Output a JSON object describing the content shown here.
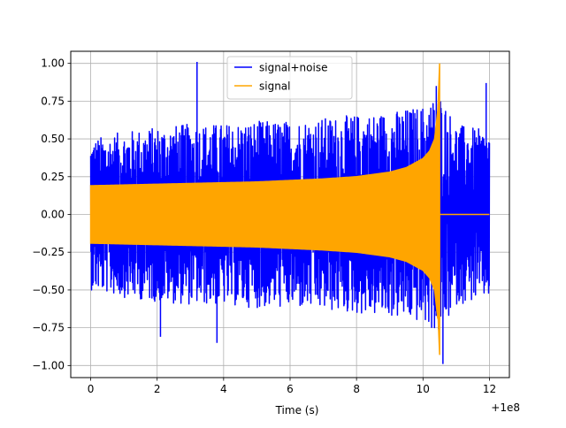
{
  "chart_data": {
    "type": "line",
    "title": "",
    "xlabel": "Time (s)",
    "ylabel": "",
    "x_offset_label": "+1e8",
    "xlim": [
      -0.6,
      12.6
    ],
    "ylim": [
      -1.08,
      1.08
    ],
    "x_ticks": [
      0,
      2,
      4,
      6,
      8,
      10,
      12
    ],
    "x_tick_labels": [
      "0",
      "2",
      "4",
      "6",
      "8",
      "10",
      "12"
    ],
    "y_ticks": [
      -1.0,
      -0.75,
      -0.5,
      -0.25,
      0.0,
      0.25,
      0.5,
      0.75,
      1.0
    ],
    "y_tick_labels": [
      "−1.00",
      "−0.75",
      "−0.50",
      "−0.25",
      "0.00",
      "0.25",
      "0.50",
      "0.75",
      "1.00"
    ],
    "grid": true,
    "legend_position": "top-center",
    "series": [
      {
        "name": "signal+noise",
        "color": "#0000ff",
        "x_range": [
          0,
          12
        ],
        "description_envelope": {
          "x": [
            0,
            1,
            2,
            3,
            4,
            5,
            6,
            7,
            8,
            9,
            10,
            10.5,
            11,
            12
          ],
          "upper": [
            0.5,
            0.55,
            0.58,
            0.6,
            0.6,
            0.62,
            0.62,
            0.64,
            0.66,
            0.68,
            0.72,
            0.8,
            0.6,
            0.55
          ],
          "lower": [
            -0.5,
            -0.55,
            -0.58,
            -0.6,
            -0.6,
            -0.62,
            -0.62,
            -0.64,
            -0.66,
            -0.68,
            -0.72,
            -0.8,
            -0.6,
            -0.55
          ]
        },
        "peaks": [
          {
            "x": 3.2,
            "y": 1.01
          },
          {
            "x": 3.8,
            "y": -0.85
          },
          {
            "x": 10.4,
            "y": 0.85
          },
          {
            "x": 10.6,
            "y": -0.99
          },
          {
            "x": 11.9,
            "y": 0.87
          },
          {
            "x": 2.1,
            "y": -0.81
          }
        ]
      },
      {
        "name": "signal",
        "color": "#ffa500",
        "x_range": [
          0,
          10.5
        ],
        "envelope": {
          "x": [
            0,
            1,
            2,
            3,
            4,
            5,
            6,
            7,
            8,
            9,
            9.5,
            10,
            10.2,
            10.35,
            10.45,
            10.5
          ],
          "amplitude": [
            0.19,
            0.195,
            0.2,
            0.205,
            0.21,
            0.215,
            0.225,
            0.235,
            0.25,
            0.28,
            0.31,
            0.37,
            0.42,
            0.5,
            0.7,
            1.0
          ]
        },
        "after_end_value": 0.0,
        "after_end_range": [
          10.5,
          12
        ]
      }
    ]
  }
}
